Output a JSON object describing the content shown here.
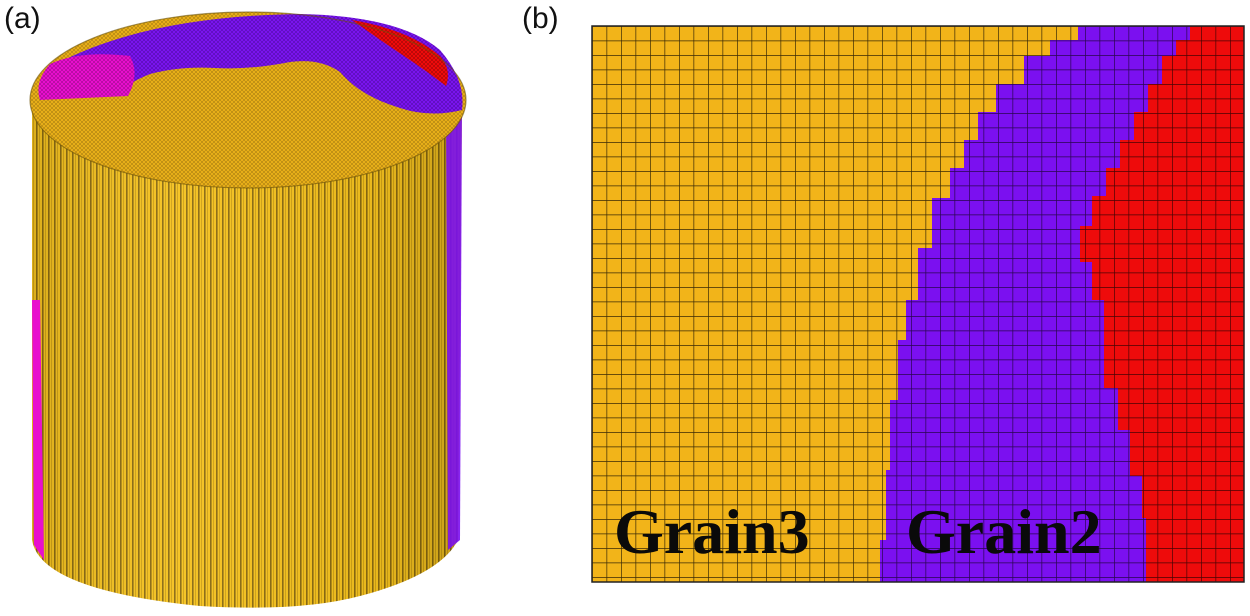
{
  "panels": {
    "a": {
      "label": "(a)"
    },
    "b": {
      "label": "(b)"
    }
  },
  "grains": {
    "grain3": {
      "label": "Grain3",
      "color": "#F2B419"
    },
    "grain2": {
      "label": "Grain2",
      "color": "#7B10F0"
    },
    "grain_red": {
      "color": "#EE0B0B"
    },
    "grain_magenta": {
      "color": "#E80FCE"
    }
  }
}
